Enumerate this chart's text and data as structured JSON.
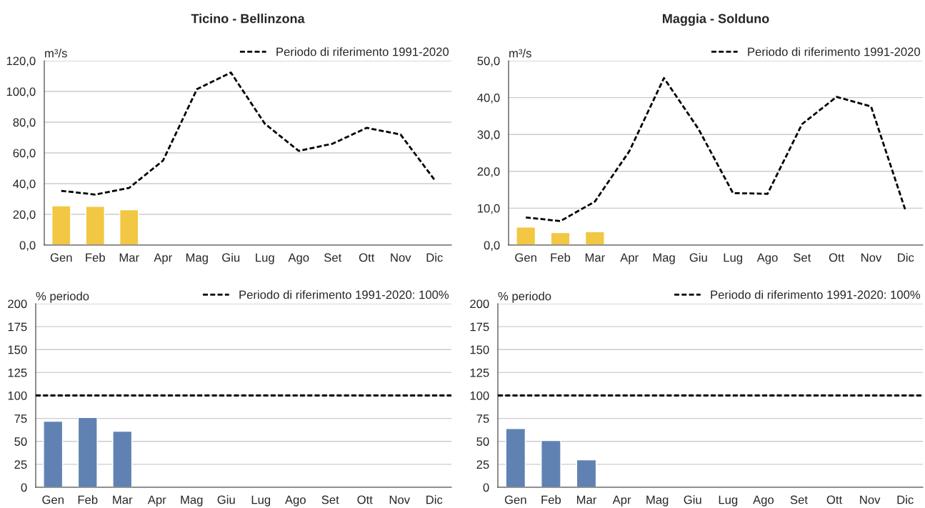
{
  "chart_data": [
    {
      "type": "bar",
      "title": "Ticino - Bellinzona",
      "ylabel": "m³/s",
      "categories": [
        "Gen",
        "Feb",
        "Mar",
        "Apr",
        "Mag",
        "Giu",
        "Lug",
        "Ago",
        "Set",
        "Ott",
        "Nov",
        "Dic"
      ],
      "series": [
        {
          "color": "#f2c744",
          "values": [
            25.6,
            25.2,
            23.0,
            null,
            null,
            null,
            null,
            null,
            null,
            null,
            null,
            null
          ]
        },
        {
          "type": "line",
          "name": "Periodo di riferimento 1991-2020",
          "color": "#000000",
          "line_style": "dashed",
          "values": [
            35.3,
            32.9,
            37.2,
            55.0,
            101.5,
            112.3,
            79.0,
            61.3,
            66.0,
            76.3,
            72.0,
            42.5
          ]
        }
      ],
      "ylim": [
        0,
        120
      ],
      "yticks": [
        {
          "value": 0,
          "label": "0,0"
        },
        {
          "value": 20,
          "label": "20,0"
        },
        {
          "value": 40,
          "label": "40,0"
        },
        {
          "value": 60,
          "label": "60,0"
        },
        {
          "value": 80,
          "label": "80,0"
        },
        {
          "value": 100,
          "label": "100,0"
        },
        {
          "value": 120,
          "label": "120,0"
        }
      ],
      "grid": "y",
      "legend": "top right",
      "marker": "none"
    },
    {
      "type": "bar",
      "title": "Maggia - Solduno",
      "ylabel": "m³/s",
      "categories": [
        "Gen",
        "Feb",
        "Mar",
        "Apr",
        "Mag",
        "Giu",
        "Lug",
        "Ago",
        "Set",
        "Ott",
        "Nov",
        "Dic"
      ],
      "series": [
        {
          "color": "#f2c744",
          "values": [
            4.9,
            3.4,
            3.6,
            null,
            null,
            null,
            null,
            null,
            null,
            null,
            null,
            null
          ]
        },
        {
          "type": "line",
          "name": "Periodo di riferimento 1991-2020",
          "color": "#000000",
          "line_style": "dashed",
          "values": [
            7.5,
            6.5,
            11.8,
            25.5,
            45.3,
            31.5,
            14.1,
            13.9,
            32.8,
            40.2,
            37.6,
            9.3
          ]
        }
      ],
      "ylim": [
        0,
        50
      ],
      "yticks": [
        {
          "value": 0,
          "label": "0,0"
        },
        {
          "value": 10,
          "label": "10,0"
        },
        {
          "value": 20,
          "label": "20,0"
        },
        {
          "value": 30,
          "label": "30,0"
        },
        {
          "value": 40,
          "label": "40,0"
        },
        {
          "value": 50,
          "label": "50,0"
        }
      ],
      "grid": "y",
      "legend": "top right",
      "marker": "none"
    },
    {
      "type": "bar",
      "ylabel": "% periodo",
      "categories": [
        "Gen",
        "Feb",
        "Mar",
        "Apr",
        "Mag",
        "Giu",
        "Lug",
        "Ago",
        "Set",
        "Ott",
        "Nov",
        "Dic"
      ],
      "series": [
        {
          "color": "#6082b3",
          "values": [
            72,
            76,
            61,
            null,
            null,
            null,
            null,
            null,
            null,
            null,
            null,
            null
          ]
        }
      ],
      "ref_lines": [
        {
          "axis": "y",
          "value": 100,
          "label": "Periodo di riferimento 1991-2020: 100%",
          "color": "#000000",
          "line_style": "dashed"
        }
      ],
      "ylim": [
        0,
        200
      ],
      "yticks": [
        0,
        25,
        50,
        75,
        100,
        125,
        150,
        175,
        200
      ],
      "grid": "y",
      "legend": "top right"
    },
    {
      "type": "bar",
      "ylabel": "% periodo",
      "categories": [
        "Gen",
        "Feb",
        "Mar",
        "Apr",
        "Mag",
        "Giu",
        "Lug",
        "Ago",
        "Set",
        "Ott",
        "Nov",
        "Dic"
      ],
      "series": [
        {
          "color": "#6082b3",
          "values": [
            64,
            51,
            30,
            null,
            null,
            null,
            null,
            null,
            null,
            null,
            null,
            null
          ]
        }
      ],
      "ref_lines": [
        {
          "axis": "y",
          "value": 100,
          "label": "Periodo di riferimento 1991-2020: 100%",
          "color": "#000000",
          "line_style": "dashed"
        }
      ],
      "ylim": [
        0,
        200
      ],
      "yticks": [
        0,
        25,
        50,
        75,
        100,
        125,
        150,
        175,
        200
      ],
      "grid": "y",
      "legend": "top right"
    }
  ]
}
